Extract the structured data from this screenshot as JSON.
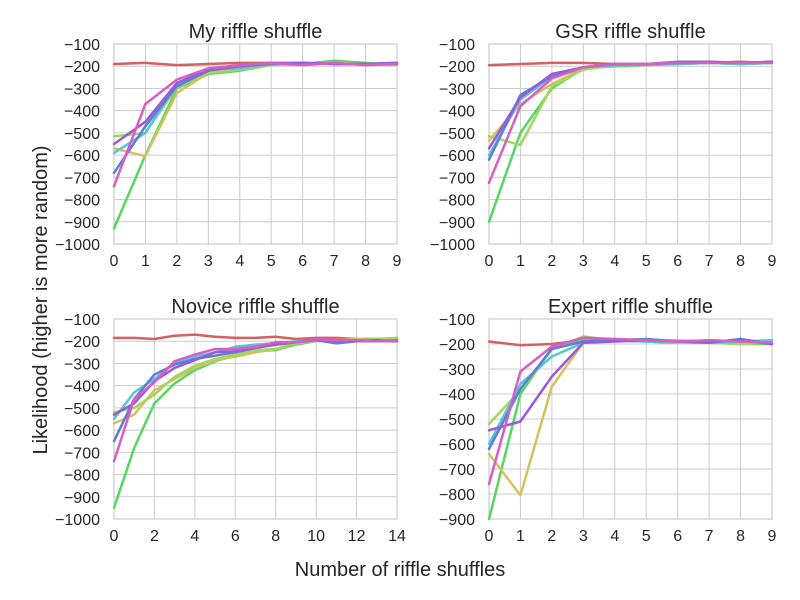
{
  "figure": {
    "ylabel": "Likelihood (higher is more random)",
    "xlabel": "Number of riffle shuffles"
  },
  "chart_data": [
    {
      "type": "line",
      "title": "My riffle shuffle",
      "grid": true,
      "xlim": [
        0,
        9
      ],
      "ylim": [
        -1000,
        -100
      ],
      "x_ticks": [
        0,
        1,
        2,
        3,
        4,
        5,
        6,
        7,
        8,
        9
      ],
      "y_ticks": [
        -100,
        -200,
        -300,
        -400,
        -500,
        -600,
        -700,
        -800,
        -900,
        -1000
      ],
      "x": [
        0,
        1,
        2,
        3,
        4,
        5,
        6,
        7,
        8,
        9
      ],
      "series": [
        {
          "color": "#d65f5f",
          "values": [
            -190,
            -185,
            -195,
            -190,
            -185,
            -185,
            -190,
            -185,
            -190,
            -190
          ]
        },
        {
          "color": "#57d663",
          "values": [
            -930,
            -600,
            -300,
            -235,
            -220,
            -195,
            -190,
            -175,
            -185,
            -195
          ]
        },
        {
          "color": "#d6c05f",
          "values": [
            -570,
            -605,
            -320,
            -230,
            -215,
            -195,
            -190,
            -185,
            -190,
            -190
          ]
        },
        {
          "color": "#9fd85a",
          "values": [
            -515,
            -500,
            -295,
            -225,
            -215,
            -195,
            -190,
            -185,
            -190,
            -195
          ]
        },
        {
          "color": "#5ac5d8",
          "values": [
            -590,
            -500,
            -280,
            -215,
            -210,
            -190,
            -185,
            -190,
            -190,
            -190
          ]
        },
        {
          "color": "#5a7fd8",
          "values": [
            -680,
            -470,
            -290,
            -220,
            -200,
            -190,
            -185,
            -190,
            -190,
            -185
          ]
        },
        {
          "color": "#9a5ad8",
          "values": [
            -550,
            -450,
            -275,
            -215,
            -200,
            -185,
            -185,
            -190,
            -190,
            -185
          ]
        },
        {
          "color": "#d65fc3",
          "values": [
            -740,
            -370,
            -260,
            -210,
            -195,
            -185,
            -195,
            -185,
            -195,
            -190
          ]
        }
      ]
    },
    {
      "type": "line",
      "title": "GSR riffle shuffle",
      "grid": true,
      "xlim": [
        0,
        9
      ],
      "ylim": [
        -1000,
        -100
      ],
      "x_ticks": [
        0,
        1,
        2,
        3,
        4,
        5,
        6,
        7,
        8,
        9
      ],
      "y_ticks": [
        -100,
        -200,
        -300,
        -400,
        -500,
        -600,
        -700,
        -800,
        -900,
        -1000
      ],
      "x": [
        0,
        1,
        2,
        3,
        4,
        5,
        6,
        7,
        8,
        9
      ],
      "series": [
        {
          "color": "#d65f5f",
          "values": [
            -195,
            -190,
            -185,
            -185,
            -190,
            -190,
            -185,
            -185,
            -180,
            -185
          ]
        },
        {
          "color": "#57d663",
          "values": [
            -900,
            -500,
            -300,
            -210,
            -200,
            -195,
            -190,
            -185,
            -190,
            -185
          ]
        },
        {
          "color": "#d6c05f",
          "values": [
            -535,
            -370,
            -280,
            -210,
            -195,
            -190,
            -190,
            -185,
            -185,
            -185
          ]
        },
        {
          "color": "#9fd85a",
          "values": [
            -515,
            -555,
            -290,
            -215,
            -195,
            -190,
            -190,
            -185,
            -190,
            -185
          ]
        },
        {
          "color": "#5ac5d8",
          "values": [
            -600,
            -350,
            -245,
            -205,
            -195,
            -190,
            -190,
            -185,
            -190,
            -185
          ]
        },
        {
          "color": "#5a7fd8",
          "values": [
            -620,
            -330,
            -245,
            -205,
            -190,
            -190,
            -180,
            -180,
            -185,
            -180
          ]
        },
        {
          "color": "#9a5ad8",
          "values": [
            -570,
            -340,
            -235,
            -205,
            -190,
            -190,
            -185,
            -180,
            -185,
            -180
          ]
        },
        {
          "color": "#d65fc3",
          "values": [
            -725,
            -380,
            -255,
            -205,
            -190,
            -190,
            -185,
            -185,
            -185,
            -185
          ]
        }
      ]
    },
    {
      "type": "line",
      "title": "Novice riffle shuffle",
      "grid": true,
      "xlim": [
        0,
        14
      ],
      "ylim": [
        -1000,
        -100
      ],
      "x_ticks": [
        0,
        2,
        4,
        6,
        8,
        10,
        12,
        14
      ],
      "y_ticks": [
        -100,
        -200,
        -300,
        -400,
        -500,
        -600,
        -700,
        -800,
        -900,
        -1000
      ],
      "x": [
        0,
        1,
        2,
        3,
        4,
        5,
        6,
        7,
        8,
        9,
        10,
        11,
        12,
        13,
        14
      ],
      "series": [
        {
          "color": "#d65f5f",
          "values": [
            -185,
            -185,
            -190,
            -175,
            -170,
            -180,
            -185,
            -185,
            -180,
            -190,
            -185,
            -185,
            -190,
            -190,
            -190
          ]
        },
        {
          "color": "#57d663",
          "values": [
            -950,
            -680,
            -480,
            -390,
            -330,
            -290,
            -265,
            -245,
            -240,
            -215,
            -200,
            -195,
            -200,
            -195,
            -190
          ]
        },
        {
          "color": "#d6c05f",
          "values": [
            -570,
            -530,
            -420,
            -370,
            -320,
            -285,
            -270,
            -250,
            -235,
            -210,
            -200,
            -195,
            -190,
            -195,
            -185
          ]
        },
        {
          "color": "#9fd85a",
          "values": [
            -520,
            -500,
            -440,
            -360,
            -310,
            -280,
            -260,
            -240,
            -235,
            -210,
            -195,
            -200,
            -195,
            -190,
            -185
          ]
        },
        {
          "color": "#5ac5d8",
          "values": [
            -550,
            -430,
            -370,
            -300,
            -270,
            -250,
            -225,
            -215,
            -210,
            -200,
            -195,
            -200,
            -195,
            -200,
            -195
          ]
        },
        {
          "color": "#5a7fd8",
          "values": [
            -650,
            -460,
            -350,
            -305,
            -280,
            -265,
            -250,
            -230,
            -215,
            -205,
            -195,
            -210,
            -200,
            -195,
            -200
          ]
        },
        {
          "color": "#9a5ad8",
          "values": [
            -530,
            -480,
            -380,
            -320,
            -285,
            -250,
            -245,
            -230,
            -215,
            -205,
            -195,
            -200,
            -200,
            -200,
            -200
          ]
        },
        {
          "color": "#d65fc3",
          "values": [
            -740,
            -460,
            -385,
            -290,
            -260,
            -235,
            -235,
            -225,
            -205,
            -205,
            -190,
            -195,
            -195,
            -200,
            -195
          ]
        }
      ]
    },
    {
      "type": "line",
      "title": "Expert riffle shuffle",
      "grid": true,
      "xlim": [
        0,
        9
      ],
      "ylim": [
        -900,
        -100
      ],
      "x_ticks": [
        0,
        1,
        2,
        3,
        4,
        5,
        6,
        7,
        8,
        9
      ],
      "y_ticks": [
        -100,
        -200,
        -300,
        -400,
        -500,
        -600,
        -700,
        -800,
        -900
      ],
      "x": [
        0,
        1,
        2,
        3,
        4,
        5,
        6,
        7,
        8,
        9
      ],
      "series": [
        {
          "color": "#d65f5f",
          "values": [
            -190,
            -205,
            -200,
            -185,
            -185,
            -190,
            -195,
            -185,
            -190,
            -195
          ]
        },
        {
          "color": "#57d663",
          "values": [
            -900,
            -400,
            -215,
            -180,
            -185,
            -190,
            -195,
            -195,
            -200,
            -200
          ]
        },
        {
          "color": "#d6c05f",
          "values": [
            -640,
            -805,
            -370,
            -195,
            -180,
            -185,
            -185,
            -190,
            -190,
            -185
          ]
        },
        {
          "color": "#9fd85a",
          "values": [
            -520,
            -385,
            -220,
            -170,
            -185,
            -185,
            -195,
            -195,
            -200,
            -195
          ]
        },
        {
          "color": "#5ac5d8",
          "values": [
            -600,
            -360,
            -250,
            -195,
            -185,
            -190,
            -190,
            -195,
            -190,
            -185
          ]
        },
        {
          "color": "#5a7fd8",
          "values": [
            -620,
            -380,
            -220,
            -190,
            -185,
            -180,
            -190,
            -195,
            -180,
            -200
          ]
        },
        {
          "color": "#9a5ad8",
          "values": [
            -545,
            -510,
            -330,
            -195,
            -190,
            -185,
            -190,
            -190,
            -185,
            -200
          ]
        },
        {
          "color": "#d65fc3",
          "values": [
            -760,
            -310,
            -210,
            -175,
            -180,
            -185,
            -190,
            -185,
            -190,
            -195
          ]
        }
      ]
    }
  ]
}
